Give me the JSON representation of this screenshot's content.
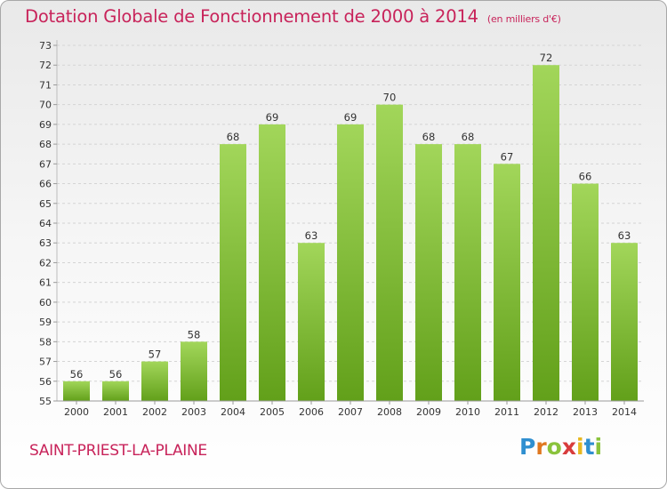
{
  "title": "Dotation Globale de Fonctionnement de 2000 à 2014",
  "subtitle": "(en milliers d'€)",
  "commune": "SAINT-PRIEST-LA-PLAINE",
  "logo": {
    "letters": [
      "P",
      "r",
      "o",
      "x",
      "i",
      "t",
      "i"
    ],
    "colors": [
      "#2f8fd0",
      "#e07820",
      "#8ac33c",
      "#d83c3c",
      "#e8b820",
      "#2f8fd0",
      "#8ac33c"
    ]
  },
  "colors": {
    "bar_top": "#a2d65a",
    "bar_bottom": "#62a01a",
    "grid": "#d4d4d4",
    "text_accent": "#c8235a"
  },
  "chart_data": {
    "type": "bar",
    "categories": [
      "2000",
      "2001",
      "2002",
      "2003",
      "2004",
      "2005",
      "2006",
      "2007",
      "2008",
      "2009",
      "2010",
      "2011",
      "2012",
      "2013",
      "2014"
    ],
    "values": [
      56,
      56,
      57,
      58,
      68,
      69,
      63,
      69,
      70,
      68,
      68,
      67,
      72,
      66,
      63
    ],
    "title": "Dotation Globale de Fonctionnement de 2000 à 2014",
    "subtitle": "(en milliers d'€)",
    "xlabel": "",
    "ylabel": "",
    "ylim": [
      55,
      73
    ],
    "yticks": [
      55,
      56,
      57,
      58,
      59,
      60,
      61,
      62,
      63,
      64,
      65,
      66,
      67,
      68,
      69,
      70,
      71,
      72,
      73
    ],
    "grid": true,
    "legend": "none"
  }
}
